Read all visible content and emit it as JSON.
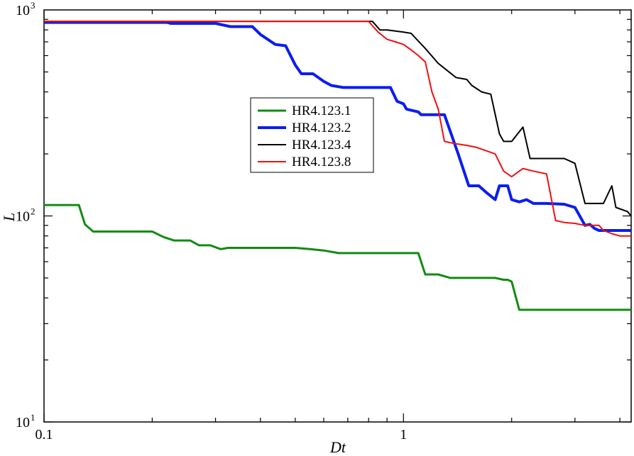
{
  "chart_data": {
    "type": "line",
    "xlabel": "Dt",
    "ylabel": "L",
    "xscale": "log",
    "yscale": "log",
    "xlim": [
      0.1,
      4.3
    ],
    "ylim": [
      10,
      1000
    ],
    "x_tick_labels": [
      {
        "value": 0.1,
        "base": "0.1",
        "exp": ""
      },
      {
        "value": 1,
        "base": "1",
        "exp": ""
      }
    ],
    "y_tick_labels": [
      {
        "value": 10,
        "base": "10",
        "exp": "1"
      },
      {
        "value": 100,
        "base": "10",
        "exp": "2"
      },
      {
        "value": 1000,
        "base": "10",
        "exp": "3"
      }
    ],
    "grid": false,
    "legend_position": "upper-center",
    "series": [
      {
        "name": "HR4.123.1",
        "color": "#108c10",
        "width": 3,
        "points": [
          [
            0.1,
            113
          ],
          [
            0.125,
            113
          ],
          [
            0.13,
            91
          ],
          [
            0.137,
            84
          ],
          [
            0.2,
            84
          ],
          [
            0.215,
            79
          ],
          [
            0.23,
            76
          ],
          [
            0.255,
            76
          ],
          [
            0.27,
            72
          ],
          [
            0.29,
            72
          ],
          [
            0.31,
            69
          ],
          [
            0.325,
            70
          ],
          [
            0.5,
            70
          ],
          [
            0.55,
            69
          ],
          [
            0.6,
            68
          ],
          [
            0.66,
            66
          ],
          [
            1.1,
            66
          ],
          [
            1.15,
            52
          ],
          [
            1.25,
            52
          ],
          [
            1.35,
            50
          ],
          [
            1.8,
            50
          ],
          [
            1.9,
            49
          ],
          [
            1.95,
            49
          ],
          [
            2.0,
            48
          ],
          [
            2.1,
            35
          ],
          [
            4.3,
            35
          ]
        ]
      },
      {
        "name": "HR4.123.2",
        "color": "#0a1ef0",
        "width": 4,
        "points": [
          [
            0.1,
            870
          ],
          [
            0.22,
            870
          ],
          [
            0.225,
            860
          ],
          [
            0.3,
            860
          ],
          [
            0.33,
            830
          ],
          [
            0.38,
            830
          ],
          [
            0.4,
            760
          ],
          [
            0.44,
            680
          ],
          [
            0.47,
            670
          ],
          [
            0.5,
            540
          ],
          [
            0.52,
            490
          ],
          [
            0.56,
            490
          ],
          [
            0.6,
            450
          ],
          [
            0.63,
            430
          ],
          [
            0.68,
            420
          ],
          [
            0.92,
            420
          ],
          [
            0.96,
            360
          ],
          [
            1.0,
            350
          ],
          [
            1.02,
            330
          ],
          [
            1.1,
            320
          ],
          [
            1.12,
            310
          ],
          [
            1.3,
            310
          ],
          [
            1.42,
            200
          ],
          [
            1.52,
            140
          ],
          [
            1.62,
            140
          ],
          [
            1.7,
            130
          ],
          [
            1.8,
            120
          ],
          [
            1.85,
            140
          ],
          [
            1.95,
            140
          ],
          [
            2.0,
            120
          ],
          [
            2.1,
            117
          ],
          [
            2.2,
            120
          ],
          [
            2.3,
            115
          ],
          [
            2.5,
            115
          ],
          [
            2.8,
            114
          ],
          [
            3.0,
            110
          ],
          [
            3.2,
            90
          ],
          [
            3.3,
            91
          ],
          [
            3.4,
            87
          ],
          [
            3.5,
            85
          ],
          [
            3.8,
            85
          ],
          [
            4.3,
            85
          ]
        ]
      },
      {
        "name": "HR4.123.4",
        "color": "#000000",
        "width": 2,
        "points": [
          [
            0.1,
            880
          ],
          [
            0.82,
            880
          ],
          [
            0.86,
            800
          ],
          [
            0.9,
            800
          ],
          [
            0.95,
            790
          ],
          [
            1.0,
            780
          ],
          [
            1.05,
            770
          ],
          [
            1.15,
            650
          ],
          [
            1.25,
            550
          ],
          [
            1.4,
            470
          ],
          [
            1.5,
            460
          ],
          [
            1.55,
            430
          ],
          [
            1.65,
            400
          ],
          [
            1.75,
            390
          ],
          [
            1.85,
            250
          ],
          [
            1.9,
            230
          ],
          [
            2.0,
            230
          ],
          [
            2.15,
            270
          ],
          [
            2.25,
            190
          ],
          [
            2.4,
            190
          ],
          [
            2.8,
            190
          ],
          [
            3.0,
            180
          ],
          [
            3.2,
            115
          ],
          [
            3.6,
            115
          ],
          [
            3.8,
            140
          ],
          [
            3.9,
            110
          ],
          [
            4.2,
            105
          ],
          [
            4.3,
            100
          ]
        ]
      },
      {
        "name": "HR4.123.8",
        "color": "#f01010",
        "width": 2,
        "points": [
          [
            0.1,
            880
          ],
          [
            0.8,
            880
          ],
          [
            0.85,
            780
          ],
          [
            0.9,
            720
          ],
          [
            0.95,
            700
          ],
          [
            1.0,
            680
          ],
          [
            1.05,
            640
          ],
          [
            1.1,
            600
          ],
          [
            1.15,
            560
          ],
          [
            1.2,
            400
          ],
          [
            1.25,
            330
          ],
          [
            1.3,
            230
          ],
          [
            1.38,
            225
          ],
          [
            1.5,
            220
          ],
          [
            1.6,
            215
          ],
          [
            1.8,
            200
          ],
          [
            1.9,
            165
          ],
          [
            2.0,
            155
          ],
          [
            2.05,
            160
          ],
          [
            2.15,
            170
          ],
          [
            2.3,
            165
          ],
          [
            2.5,
            160
          ],
          [
            2.65,
            95
          ],
          [
            2.8,
            93
          ],
          [
            3.0,
            92
          ],
          [
            3.2,
            90
          ],
          [
            3.5,
            90
          ],
          [
            3.6,
            85
          ],
          [
            3.8,
            82
          ],
          [
            4.0,
            80
          ],
          [
            4.3,
            80
          ]
        ]
      }
    ]
  }
}
